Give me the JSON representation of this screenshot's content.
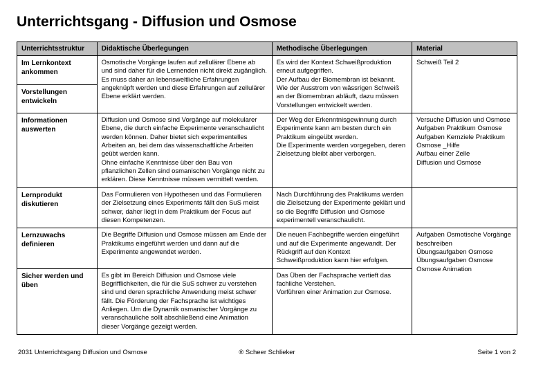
{
  "title": "Unterrichtsgang - Diffusion und Osmose",
  "columns": [
    "Unterrichtsstruktur",
    "Didaktische Überlegungen",
    "Methodische Überlegungen",
    "Material"
  ],
  "rows": [
    {
      "label1": "Im Lernkontext ankommen",
      "label2": "Vorstellungen entwickeln",
      "didaktisch": "Osmotische Vorgänge laufen auf zellulärer Ebene ab und sind daher für die Lernenden nicht direkt zugänglich. Es muss daher an lebensweltliche Erfahrungen angeknüpft werden und diese Erfahrungen auf zellulärer Ebene erklärt werden.",
      "methodisch": "Es wird der Kontext Schweißproduktion erneut aufgegriffen.\nDer Aufbau der Biomembran ist bekannt. Wie der Ausstrom von wässrigen Schweiß an der Biomembran abläuft, dazu müssen Vorstellungen entwickelt werden.",
      "material": "Schweiß Teil 2"
    },
    {
      "label": "Informationen auswerten",
      "didaktisch": "Diffusion und Osmose sind Vorgänge auf molekularer Ebene, die durch einfache Experimente veranschaulicht werden können. Daher bietet sich experimentelles Arbeiten an, bei dem das wissenschaftliche Arbeiten geübt werden kann.\nOhne einfache Kenntnisse über den Bau von pflanzlichen Zellen sind osmanischen Vorgänge nicht zu erklären. Diese Kenntnisse müssen vermittelt werden.",
      "methodisch": "Der Weg der Erkenntnisgewinnung durch Experimente kann am besten durch ein Praktikum eingeübt werden.\nDie Experimente werden vorgegeben, deren Zielsetzung bleibt aber verborgen.",
      "material": "Versuche Diffusion und Osmose\nAufgaben Praktikum Osmose\nAufgaben Kernziele Praktikum Osmose _Hilfe\nAufbau einer Zelle\nDiffusion und Osmose"
    },
    {
      "label": "Lernprodukt diskutieren",
      "didaktisch": "Das Formulieren von Hypothesen und das Formulieren der Zielsetzung eines Experiments fällt den SuS meist schwer, daher liegt in dem Praktikum der Focus auf diesen Kompetenzen.",
      "methodisch": "Nach Durchführung des Praktikums werden die Zielsetzung der Experimente geklärt und so die Begriffe Diffusion und Osmose experimentell veranschaulicht.",
      "material": ""
    },
    {
      "label": "Lernzuwachs definieren",
      "didaktisch": "Die Begriffe Diffusion und Osmose müssen am Ende der Praktikums eingeführt werden und dann auf die Experimente angewendet werden.",
      "methodisch": "Die neuen Fachbegriffe werden eingeführt und auf die Experimente angewandt. Der Rückgriff auf den Kontext Schweißproduktion kann hier erfolgen.",
      "material": "Aufgaben Osmotische Vorgänge beschreiben\nÜbungsaufgaben Osmose\nÜbungsaufgaben Osmose\nOsmose Animation"
    },
    {
      "label": "Sicher werden und üben",
      "didaktisch": "Es gibt im Bereich Diffusion und Osmose viele Begrifflichkeiten, die für die SuS schwer zu verstehen sind und deren sprachliche Anwendung meist schwer fällt. Die Förderung der Fachsprache ist wichtiges Anliegen. Um die Dynamik osmanischer Vorgänge zu veranschauliche sollt abschließend eine Animation dieser Vorgänge gezeigt werden.",
      "methodisch": "Das Üben der Fachsprache vertieft das fachliche Verstehen.\nVorführen einer Animation zur Osmose.",
      "material_merged": true
    }
  ],
  "footer": {
    "left": "2031 Unterrichtsgang Diffusion und Osmose",
    "center": "® Scheer Schlieker",
    "right": "Seite 1 von 2"
  }
}
